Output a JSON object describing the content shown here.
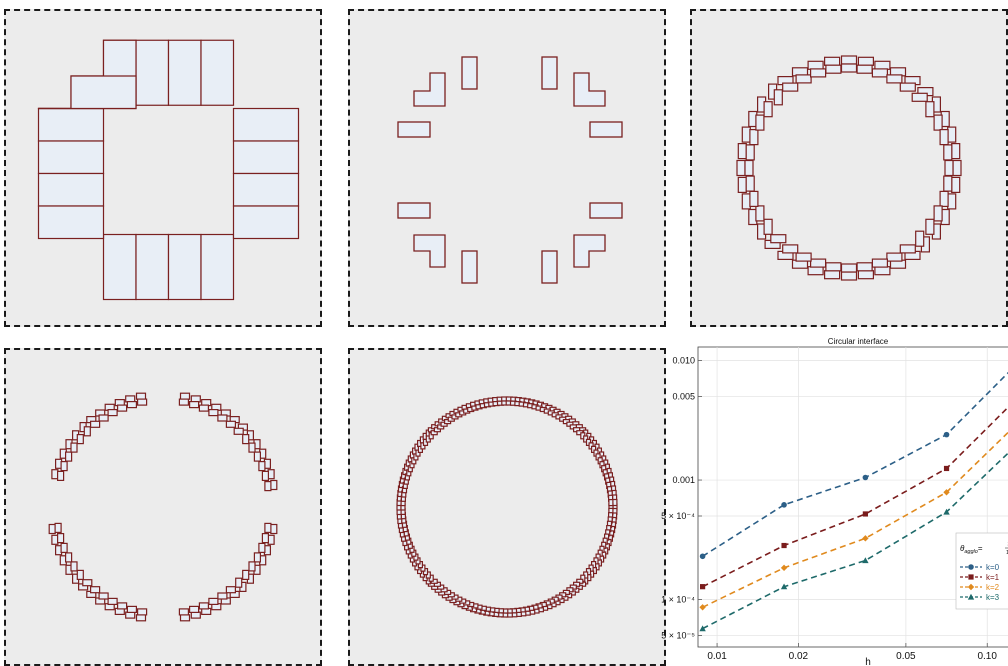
{
  "colors": {
    "panel_bg": "#ececec",
    "cell_fill": "#e8eef6",
    "cell_stroke": "#7a2020",
    "border": "#1a1a1a"
  },
  "chart_data": {
    "type": "line",
    "title": "Circular interface",
    "xlabel": "h",
    "ylabel": "",
    "x_scale": "log",
    "y_scale": "log",
    "xlim": [
      0.0085,
      0.13
    ],
    "ylim": [
      4e-05,
      0.013
    ],
    "x_ticks": [
      {
        "v": 0.01,
        "label": "0.01"
      },
      {
        "v": 0.02,
        "label": "0.02"
      },
      {
        "v": 0.05,
        "label": "0.05"
      },
      {
        "v": 0.1,
        "label": "0.10"
      }
    ],
    "y_ticks": [
      {
        "v": 0.01,
        "label": "0.010"
      },
      {
        "v": 0.005,
        "label": "0.005"
      },
      {
        "v": 0.001,
        "label": "0.001"
      },
      {
        "v": 0.0005,
        "label": "5 × 10⁻⁴"
      },
      {
        "v": 0.0001,
        "label": "1 × 10⁻⁴"
      },
      {
        "v": 5e-05,
        "label": "5 × 10⁻⁵"
      }
    ],
    "x": [
      0.00884,
      0.0177,
      0.0354,
      0.0707,
      0.141
    ],
    "series": [
      {
        "name": "k=0",
        "color": "#2c5f87",
        "marker": "circle",
        "values": [
          0.00023,
          0.00062,
          0.00105,
          0.0024,
          0.0115
        ]
      },
      {
        "name": "k=1",
        "color": "#7a1c1c",
        "marker": "square",
        "values": [
          0.000128,
          0.000283,
          0.00052,
          0.00125,
          0.0059
        ]
      },
      {
        "name": "k=2",
        "color": "#e08a1e",
        "marker": "diamond",
        "values": [
          8.6e-05,
          0.000184,
          0.000325,
          0.00079,
          0.0036
        ]
      },
      {
        "name": "k=3",
        "color": "#1e6a6a",
        "marker": "triangle",
        "values": [
          5.7e-05,
          0.000128,
          0.000212,
          0.00054,
          0.0024
        ]
      }
    ],
    "legend": {
      "title_main": "θ",
      "title_sub": "agglo",
      "title_eq": "=",
      "frac_num": "3",
      "frac_den": "10",
      "placement": "bottom-right"
    },
    "grid": true
  }
}
